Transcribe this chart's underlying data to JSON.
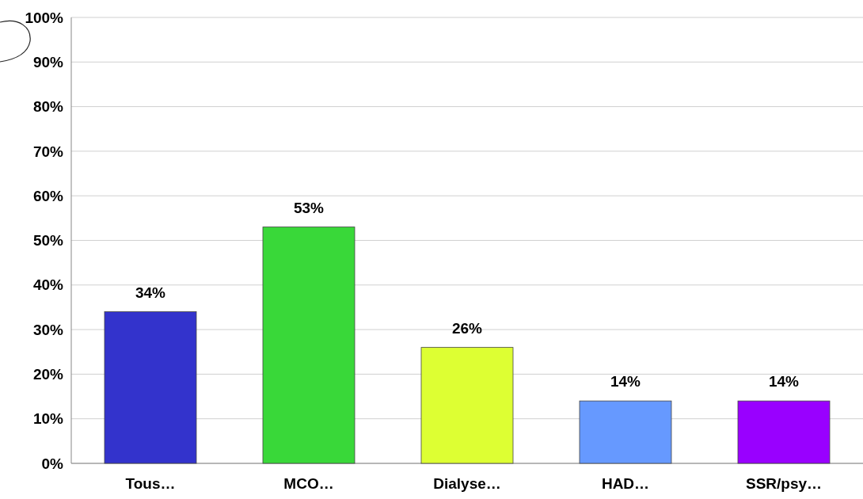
{
  "chart_data": {
    "type": "bar",
    "categories": [
      "Tous…",
      "MCO…",
      "Dialyse…",
      "HAD…",
      "SSR/psy…"
    ],
    "values": [
      34,
      53,
      26,
      14,
      14
    ],
    "colors": [
      "#3333cc",
      "#39d839",
      "#ddff33",
      "#6699ff",
      "#9900ff"
    ],
    "value_labels": [
      "34%",
      "53%",
      "26%",
      "14%",
      "14%"
    ],
    "ylim": [
      0,
      100
    ],
    "yticks": [
      {
        "value": 0,
        "label": "0%"
      },
      {
        "value": 10,
        "label": "10%"
      },
      {
        "value": 20,
        "label": "20%"
      },
      {
        "value": 30,
        "label": "30%"
      },
      {
        "value": 40,
        "label": "40%"
      },
      {
        "value": 50,
        "label": "50%"
      },
      {
        "value": 60,
        "label": "60%"
      },
      {
        "value": 70,
        "label": "70%"
      },
      {
        "value": 80,
        "label": "80%"
      },
      {
        "value": 90,
        "label": "90%"
      },
      {
        "value": 100,
        "label": "100%"
      }
    ],
    "grid": "y"
  }
}
